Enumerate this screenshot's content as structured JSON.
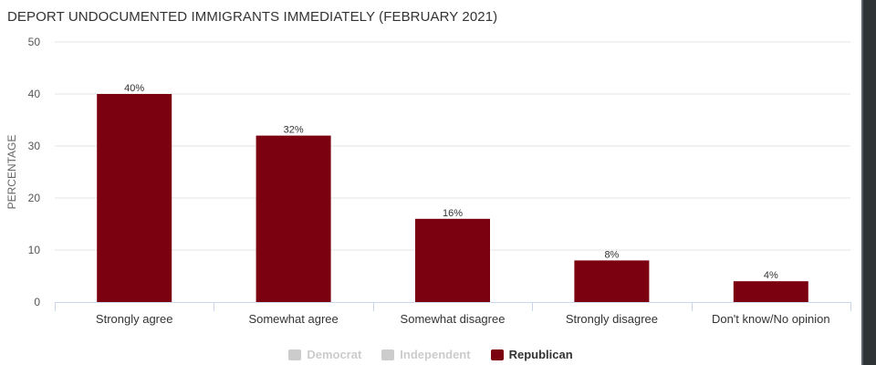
{
  "chart_data": {
    "type": "bar",
    "title": "DEPORT UNDOCUMENTED IMMIGRANTS IMMEDIATELY (FEBRUARY 2021)",
    "ylabel": "PERCENTAGE",
    "xlabel": "",
    "ylim": [
      0,
      50
    ],
    "yticks": [
      0,
      10,
      20,
      30,
      40,
      50
    ],
    "grid": true,
    "legend_position": "bottom",
    "categories": [
      "Strongly agree",
      "Somewhat agree",
      "Somewhat disagree",
      "Strongly disagree",
      "Don't know/No opinion"
    ],
    "series": [
      {
        "name": "Republican",
        "values": [
          40,
          32,
          16,
          8,
          4
        ],
        "labels": [
          "40%",
          "32%",
          "16%",
          "8%",
          "4%"
        ],
        "color": "#7b0010",
        "visible": true
      }
    ],
    "legend": [
      {
        "name": "Democrat",
        "color": "#cccccc",
        "visible": false
      },
      {
        "name": "Independent",
        "color": "#cccccc",
        "visible": false
      },
      {
        "name": "Republican",
        "color": "#7b0010",
        "visible": true
      }
    ]
  }
}
